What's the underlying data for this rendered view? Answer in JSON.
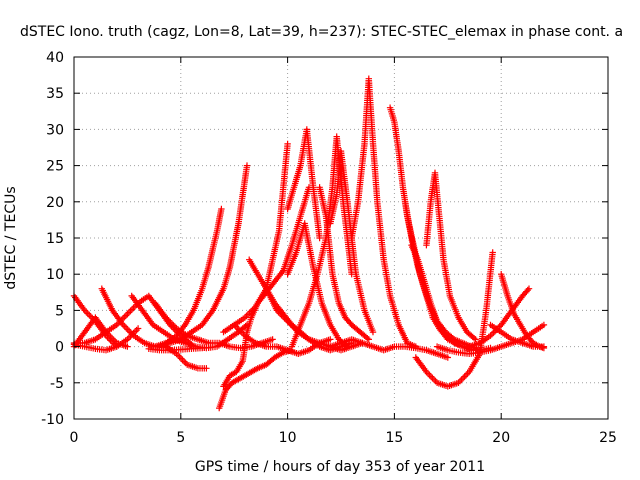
{
  "chart_data": {
    "type": "scatter",
    "title": "dSTEC Iono. truth (cagz, Lon=8, Lat=39, h=237): STEC-STEC_elemax in phase cont. a",
    "xlabel": "GPS time / hours of day 353 of year 2011",
    "ylabel": "dSTEC  / TECUs",
    "xlim": [
      0,
      25
    ],
    "ylim": [
      -10,
      40
    ],
    "xticks": [
      0,
      5,
      10,
      15,
      20,
      25
    ],
    "yticks": [
      -10,
      -5,
      0,
      5,
      10,
      15,
      20,
      25,
      30,
      35,
      40
    ],
    "grid": true,
    "marker": "+",
    "color": "#ff0000",
    "series": [
      {
        "x": [
          0.0,
          0.5,
          1.0,
          1.5,
          2.0
        ],
        "y": [
          7.0,
          5.0,
          3.5,
          1.5,
          0.0
        ]
      },
      {
        "x": [
          0.0,
          0.5,
          1.0,
          1.5,
          2.0,
          2.5,
          3.0,
          3.5,
          4.0,
          4.5,
          5.0,
          5.5
        ],
        "y": [
          0.5,
          0.5,
          1.0,
          2.0,
          3.0,
          4.5,
          6.0,
          7.0,
          5.0,
          3.0,
          1.5,
          0.3
        ]
      },
      {
        "x": [
          0.0,
          0.5,
          1.0,
          1.5,
          2.0,
          2.5,
          3.0
        ],
        "y": [
          0.3,
          0.0,
          -0.3,
          -0.5,
          0.0,
          1.0,
          2.5
        ]
      },
      {
        "x": [
          0.0,
          0.5,
          1.0,
          1.5,
          2.0,
          2.5
        ],
        "y": [
          0.0,
          2.0,
          4.0,
          2.0,
          0.5,
          0.0
        ]
      },
      {
        "x": [
          1.3,
          1.8,
          2.3,
          2.8,
          3.3,
          3.8,
          4.3,
          4.8,
          5.3,
          5.8,
          6.2
        ],
        "y": [
          8.0,
          5.0,
          3.0,
          1.5,
          0.5,
          0.0,
          0.0,
          -1.0,
          -2.5,
          -3.0,
          -3.0
        ]
      },
      {
        "x": [
          2.7,
          3.2,
          3.7,
          4.2,
          4.7,
          5.2,
          5.7,
          6.2,
          6.7,
          7.2,
          7.7,
          8.1
        ],
        "y": [
          7.0,
          5.0,
          3.0,
          2.0,
          1.0,
          0.5,
          0.0,
          -0.2,
          0.0,
          1.0,
          2.0,
          3.0
        ]
      },
      {
        "x": [
          3.8,
          4.3,
          4.8,
          5.3,
          5.8,
          6.3,
          6.8,
          7.3,
          7.8,
          8.3,
          8.8,
          9.3
        ],
        "y": [
          6.0,
          4.0,
          2.5,
          1.5,
          1.0,
          0.5,
          0.5,
          0.0,
          -0.2,
          0.0,
          0.5,
          1.0
        ]
      },
      {
        "x": [
          3.5,
          4.0,
          4.5,
          5.0,
          5.5,
          6.0,
          6.3
        ],
        "y": [
          -0.3,
          -0.5,
          -0.5,
          -0.4,
          -0.3,
          -0.2,
          -0.1
        ]
      },
      {
        "x": [
          4.0,
          4.5,
          5.0,
          5.5,
          6.0,
          6.5,
          7.0,
          7.3,
          7.5,
          7.7,
          7.9,
          8.1
        ],
        "y": [
          0.0,
          0.5,
          1.0,
          2.0,
          3.0,
          5.0,
          8.0,
          11.0,
          14.0,
          17.0,
          21.0,
          25.0
        ]
      },
      {
        "x": [
          3.8,
          4.3,
          4.8,
          5.2,
          5.6,
          6.0,
          6.3,
          6.5,
          6.7,
          6.9
        ],
        "y": [
          0.0,
          0.5,
          1.5,
          3.0,
          5.0,
          8.0,
          11.0,
          13.5,
          16.0,
          19.0
        ]
      },
      {
        "x": [
          6.8,
          7.1,
          7.4,
          7.7,
          8.0,
          8.3,
          8.6,
          9.0,
          9.4,
          9.8,
          10.2
        ],
        "y": [
          -8.5,
          -6.0,
          -5.0,
          -4.5,
          -4.0,
          -3.5,
          -3.0,
          -2.5,
          -1.5,
          -0.8,
          -0.5
        ]
      },
      {
        "x": [
          7.0,
          7.3,
          7.6,
          7.9,
          8.1,
          8.3,
          8.6,
          9.0,
          9.4,
          9.8,
          10.2,
          10.6,
          11.0
        ],
        "y": [
          -5.5,
          -4.0,
          -3.5,
          -2.0,
          2.0,
          4.0,
          6.0,
          7.5,
          9.0,
          10.5,
          14.0,
          18.0,
          22.0
        ]
      },
      {
        "x": [
          7.0,
          7.5,
          8.0,
          8.5,
          9.0,
          9.5,
          10.0,
          10.5,
          11.0,
          11.5,
          12.0
        ],
        "y": [
          2.0,
          3.0,
          1.5,
          0.5,
          0.0,
          0.0,
          -0.5,
          -1.0,
          -0.5,
          0.5,
          1.0
        ]
      },
      {
        "x": [
          8.2,
          8.6,
          9.0,
          9.4,
          9.8,
          10.2,
          10.6,
          11.0,
          11.5,
          12.0,
          12.5,
          13.0
        ],
        "y": [
          12.0,
          10.0,
          8.0,
          6.0,
          4.5,
          3.0,
          2.0,
          1.0,
          0.0,
          -0.5,
          0.0,
          0.5
        ]
      },
      {
        "x": [
          7.5,
          8.0,
          8.5,
          9.0,
          9.3,
          9.6,
          9.8,
          10.0
        ],
        "y": [
          3.0,
          4.0,
          5.5,
          8.0,
          12.0,
          16.0,
          22.0,
          28.0
        ]
      },
      {
        "x": [
          9.0,
          9.5,
          10.0,
          10.5,
          11.0,
          11.5,
          12.0,
          12.5,
          13.0,
          13.5
        ],
        "y": [
          8.0,
          5.0,
          3.5,
          2.0,
          1.0,
          0.5,
          0.0,
          -0.5,
          0.0,
          0.5
        ]
      },
      {
        "x": [
          10.0,
          10.3,
          10.6,
          10.9,
          11.2,
          11.5
        ],
        "y": [
          19.0,
          22.0,
          25.0,
          30.0,
          22.0,
          15.0
        ]
      },
      {
        "x": [
          10.0,
          10.4,
          10.8,
          11.2,
          11.6,
          12.0,
          12.4,
          12.8
        ],
        "y": [
          10.0,
          13.0,
          17.0,
          11.0,
          6.0,
          3.0,
          1.0,
          0.0
        ]
      },
      {
        "x": [
          10.2,
          10.6,
          11.0,
          11.4,
          11.8,
          12.1,
          12.3,
          12.6,
          13.0
        ],
        "y": [
          0.0,
          3.0,
          6.0,
          10.0,
          15.0,
          22.0,
          29.0,
          20.0,
          10.0
        ]
      },
      {
        "x": [
          11.5,
          11.8,
          12.1,
          12.4,
          12.7,
          13.0,
          13.4,
          13.8
        ],
        "y": [
          22.0,
          18.0,
          10.0,
          6.0,
          4.0,
          3.0,
          2.0,
          1.0
        ]
      },
      {
        "x": [
          12.0,
          12.3,
          12.5,
          12.8,
          13.2,
          13.6,
          14.0
        ],
        "y": [
          17.0,
          21.0,
          27.0,
          20.0,
          10.0,
          5.0,
          2.0
        ]
      },
      {
        "x": [
          13.0,
          13.3,
          13.6,
          13.8,
          14.0,
          14.2,
          14.5,
          14.8,
          15.2,
          15.6,
          16.0
        ],
        "y": [
          15.0,
          20.0,
          28.0,
          37.0,
          28.0,
          20.0,
          12.0,
          7.0,
          3.0,
          0.5,
          0.0
        ]
      },
      {
        "x": [
          12.0,
          12.5,
          13.0,
          13.5,
          14.0,
          14.5,
          15.0,
          15.5,
          16.0,
          16.5,
          17.0,
          17.5
        ],
        "y": [
          0.0,
          0.5,
          1.0,
          0.5,
          0.0,
          -0.5,
          0.0,
          0.0,
          -0.2,
          -0.5,
          -1.0,
          -1.5
        ]
      },
      {
        "x": [
          14.8,
          15.0,
          15.2,
          15.4,
          15.6,
          15.9,
          16.2,
          16.5,
          16.8,
          17.1,
          17.5,
          18.0
        ],
        "y": [
          33.0,
          31.0,
          27.0,
          22.0,
          18.0,
          14.0,
          10.0,
          7.0,
          4.0,
          2.5,
          1.0,
          0.3
        ]
      },
      {
        "x": [
          15.5,
          15.8,
          16.1,
          16.4,
          16.7,
          17.0,
          17.4,
          17.8,
          18.2,
          18.6,
          19.0
        ],
        "y": [
          20.0,
          15.0,
          11.0,
          8.0,
          5.5,
          3.5,
          2.0,
          1.0,
          0.5,
          0.0,
          -0.5
        ]
      },
      {
        "x": [
          16.5,
          16.7,
          16.9,
          17.1,
          17.3,
          17.6,
          18.0,
          18.4,
          18.8
        ],
        "y": [
          14.0,
          20.0,
          24.0,
          18.0,
          12.0,
          7.0,
          4.0,
          2.0,
          1.0
        ]
      },
      {
        "x": [
          15.8,
          16.1,
          16.4,
          16.7,
          17.0,
          17.4,
          17.8,
          18.2,
          18.6,
          19.0,
          19.5
        ],
        "y": [
          14.0,
          12.0,
          9.0,
          6.0,
          3.5,
          1.5,
          0.5,
          0.0,
          -0.5,
          -0.5,
          -0.2
        ]
      },
      {
        "x": [
          16.0,
          16.5,
          17.0,
          17.5,
          18.0,
          18.5,
          19.0,
          19.3,
          19.6
        ],
        "y": [
          -1.5,
          -3.5,
          -5.0,
          -5.5,
          -5.0,
          -3.5,
          -1.0,
          5.0,
          13.0
        ]
      },
      {
        "x": [
          17.0,
          17.5,
          18.0,
          18.5,
          19.0,
          19.5,
          20.0,
          20.5,
          21.0,
          21.5,
          22.0
        ],
        "y": [
          0.0,
          -0.5,
          -0.8,
          -1.0,
          -0.8,
          -0.5,
          0.0,
          0.5,
          1.0,
          2.0,
          3.0
        ]
      },
      {
        "x": [
          20.0,
          20.3,
          20.6,
          20.9,
          21.2,
          21.5,
          21.8,
          22.0
        ],
        "y": [
          10.0,
          7.0,
          4.5,
          3.0,
          1.5,
          0.5,
          0.0,
          -0.2
        ]
      },
      {
        "x": [
          18.5,
          19.0,
          19.5,
          20.0,
          20.5,
          21.0,
          21.3
        ],
        "y": [
          0.0,
          0.5,
          1.5,
          3.0,
          5.0,
          7.0,
          8.0
        ]
      },
      {
        "x": [
          19.5,
          20.0,
          20.5,
          21.0,
          21.5,
          22.0
        ],
        "y": [
          3.0,
          2.0,
          1.0,
          0.5,
          0.0,
          0.0
        ]
      }
    ]
  }
}
